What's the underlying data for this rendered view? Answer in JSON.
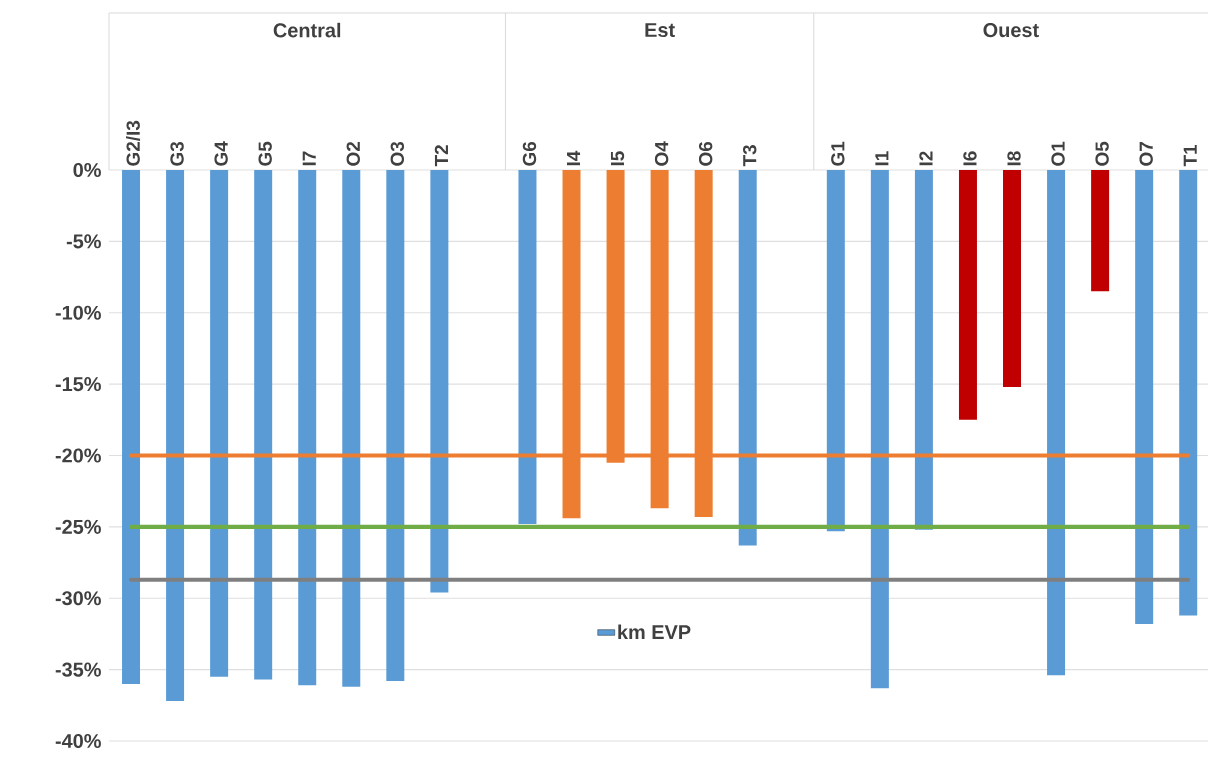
{
  "chart_data": {
    "type": "bar",
    "categories": [
      "G2/I3",
      "G3",
      "G4",
      "G5",
      "I7",
      "O2",
      "O3",
      "T2",
      null,
      "G6",
      "I4",
      "I5",
      "O4",
      "O6",
      "T3",
      null,
      "G1",
      "I1",
      "I2",
      "I6",
      "I8",
      "O1",
      "O5",
      "O7",
      "T1"
    ],
    "series": [
      {
        "name": "km EVP",
        "color": "#5b9bd5",
        "values": [
          -36.0,
          -37.2,
          -35.5,
          -35.7,
          -36.1,
          -36.2,
          -35.8,
          -29.6,
          null,
          -24.8,
          -24.4,
          -20.5,
          -23.7,
          -24.3,
          -26.3,
          null,
          -25.3,
          -36.3,
          -25.2,
          -17.5,
          -15.2,
          -35.4,
          -8.5,
          -31.8,
          -31.2
        ],
        "colors": [
          "#5b9bd5",
          "#5b9bd5",
          "#5b9bd5",
          "#5b9bd5",
          "#5b9bd5",
          "#5b9bd5",
          "#5b9bd5",
          "#5b9bd5",
          "#5b9bd5",
          "#5b9bd5",
          "#ed7d31",
          "#ed7d31",
          "#ed7d31",
          "#ed7d31",
          "#5b9bd5",
          "#5b9bd5",
          "#5b9bd5",
          "#5b9bd5",
          "#5b9bd5",
          "#c00000",
          "#c00000",
          "#5b9bd5",
          "#c00000",
          "#5b9bd5",
          "#5b9bd5"
        ]
      }
    ],
    "annotations": [
      "Central",
      "Est",
      "Ouest"
    ],
    "ylim": [
      -40,
      0
    ],
    "yticks": [
      {
        "value": 0,
        "label": "0%"
      },
      {
        "value": -5,
        "label": "-5%"
      },
      {
        "value": -10,
        "label": "-10%"
      },
      {
        "value": -15,
        "label": "-15%"
      },
      {
        "value": -20,
        "label": "-20%"
      },
      {
        "value": -25,
        "label": "-25%"
      },
      {
        "value": -30,
        "label": "-30%"
      },
      {
        "value": -35,
        "label": "-35%"
      },
      {
        "value": -40,
        "label": "-40%"
      }
    ],
    "ref_lines": [
      {
        "axis": "y",
        "value": -20,
        "color": "#ed7d31"
      },
      {
        "axis": "y",
        "value": -25,
        "color": "#70ad47"
      },
      {
        "axis": "y",
        "value": -28.7,
        "color": "#7f7f7f"
      }
    ],
    "grid": "y",
    "legend": "bottom"
  }
}
